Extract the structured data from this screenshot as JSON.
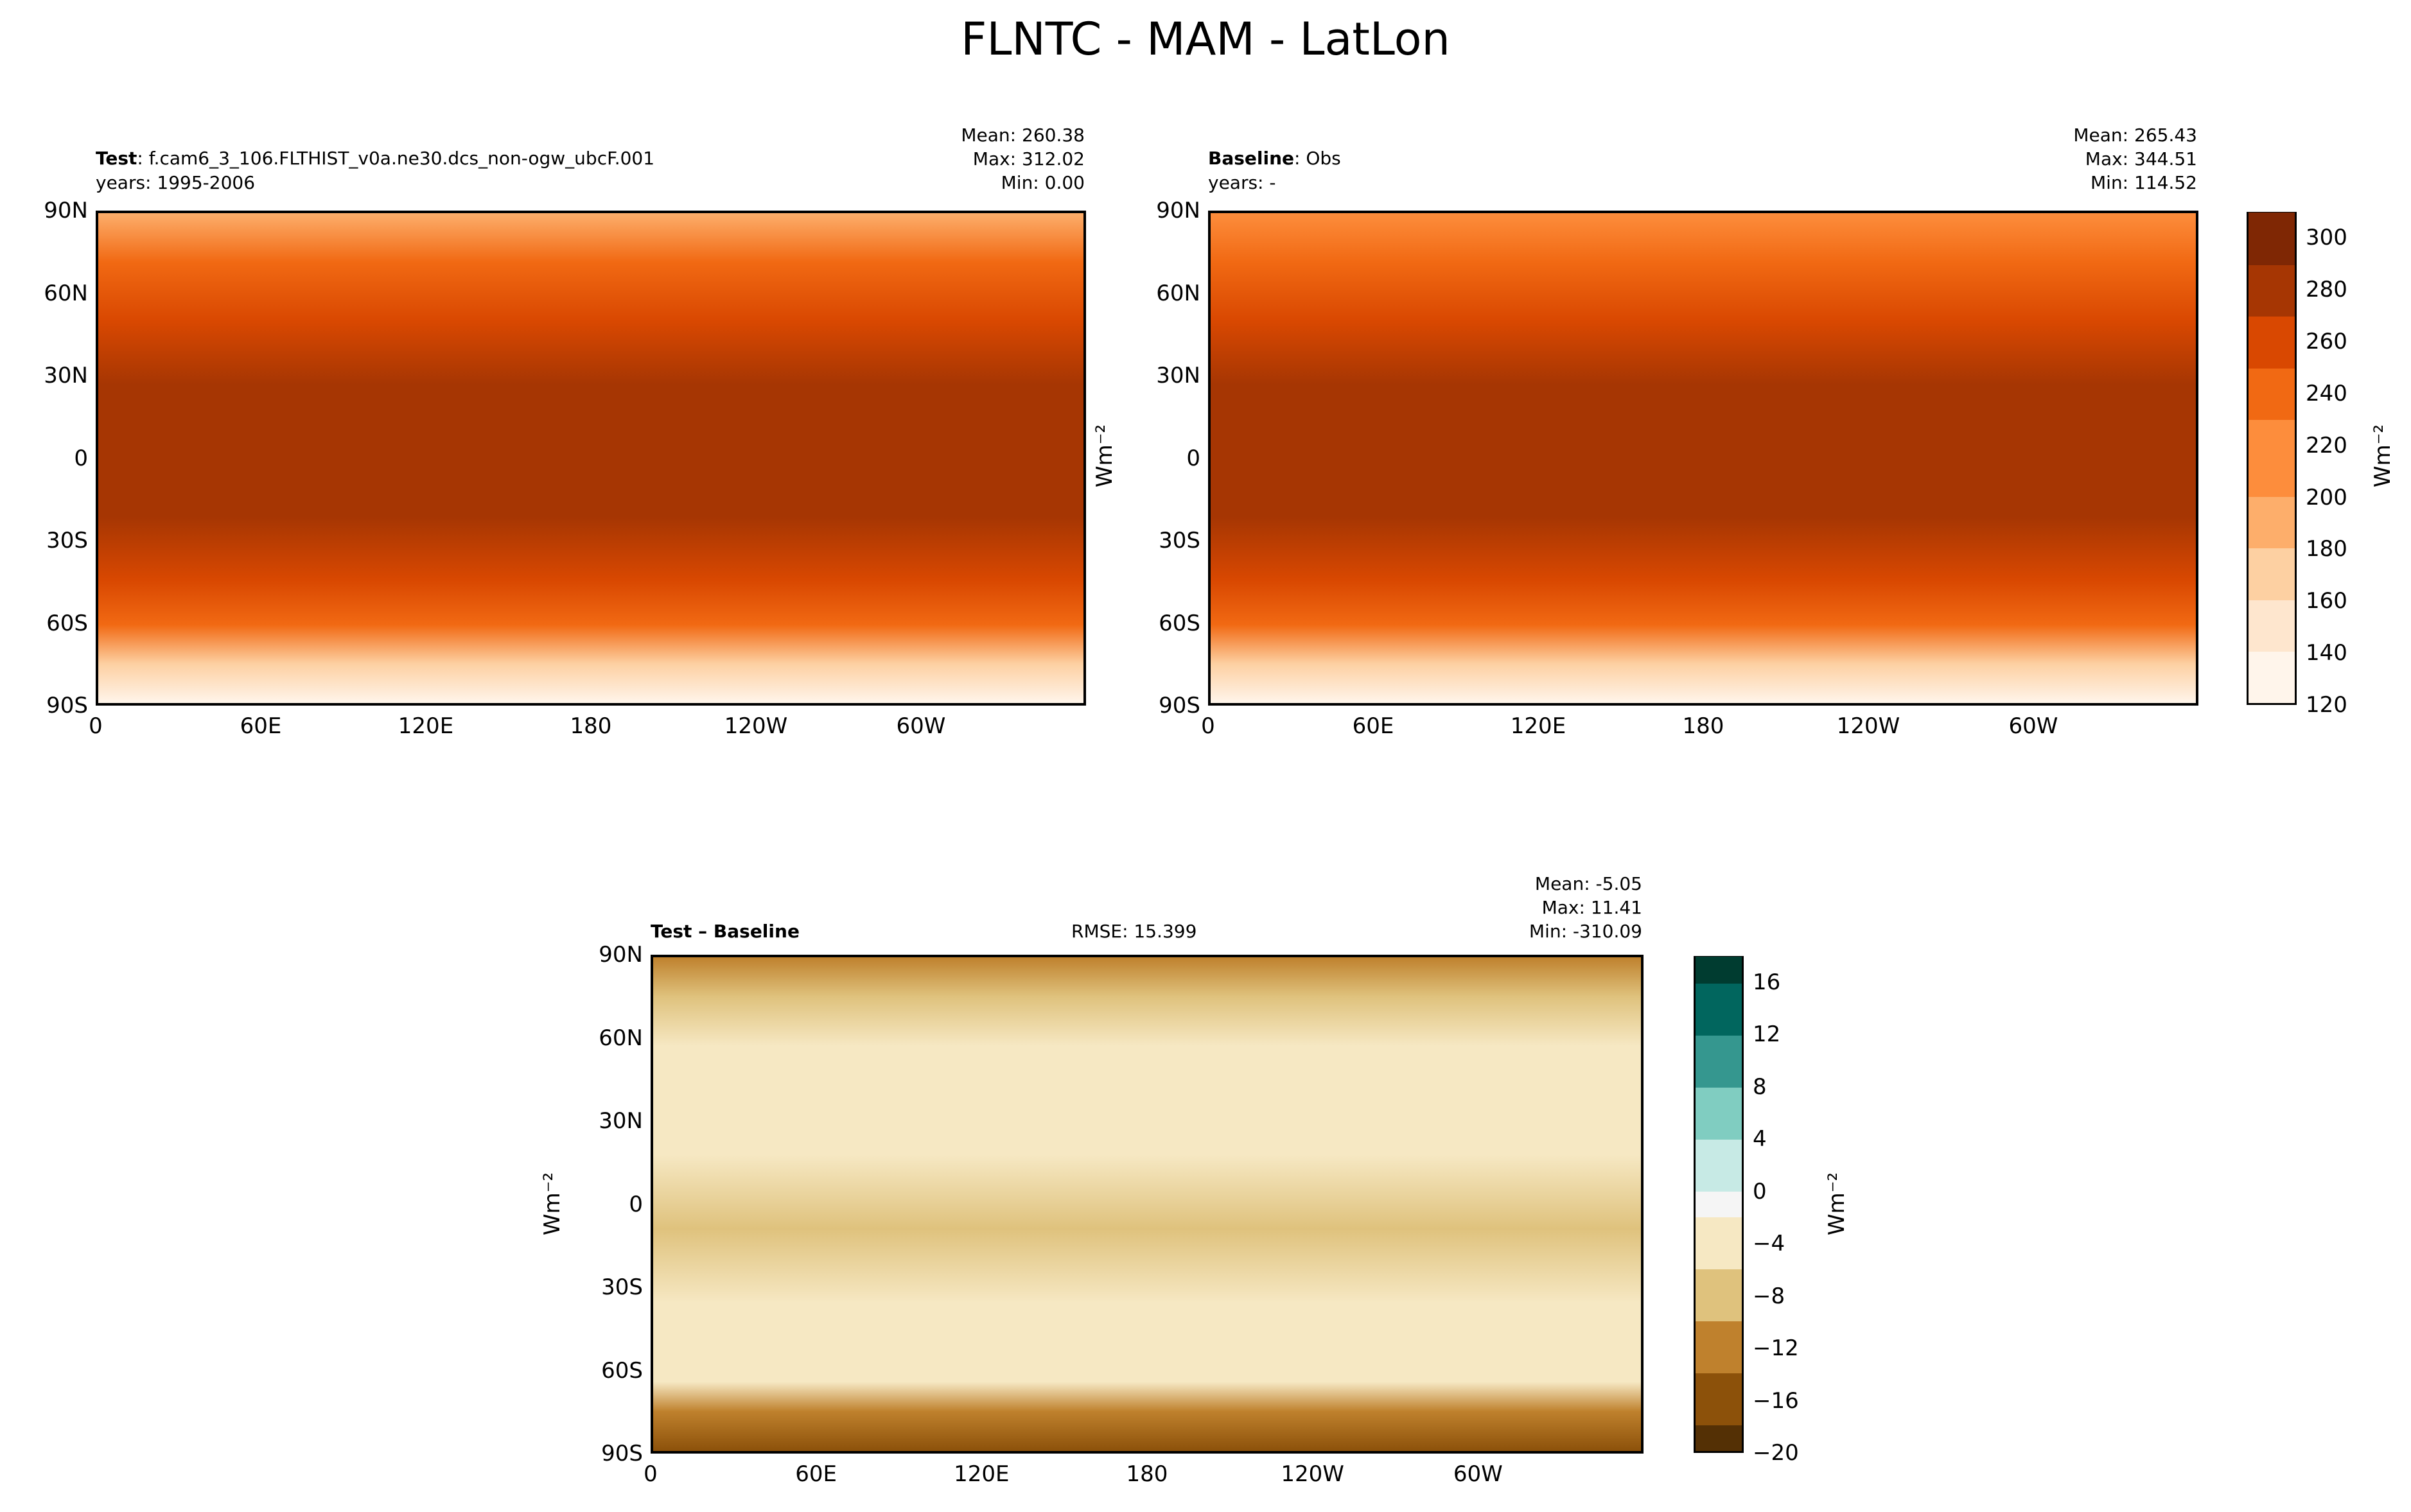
{
  "title": "FLNTC - MAM - LatLon",
  "panels": [
    {
      "label_bold": "Test",
      "label_rest": ": f.cam6_3_106.FLTHIST_v0a.ne30.dcs_non-ogw_ubcF.001",
      "years": "years: 1995-2006",
      "mean": "Mean: 260.38",
      "max": "Max: 312.02",
      "min": "Min:  0.00"
    },
    {
      "label_bold": "Baseline",
      "label_rest": ": Obs",
      "years": "years: -",
      "mean": "Mean: 265.43",
      "max": "Max: 344.51",
      "min": "Min: 114.52"
    },
    {
      "label_bold": "Test – Baseline",
      "rmse": "RMSE: 15.399",
      "mean": "Mean: -5.05",
      "max": "Max: 11.41",
      "min": "Min: -310.09"
    }
  ],
  "units": "Wm⁻²",
  "chart_data": {
    "type": "heatmap",
    "projection": "latlon",
    "x_ticks": [
      "0",
      "60E",
      "120E",
      "180",
      "120W",
      "60W"
    ],
    "y_ticks": [
      "90N",
      "60N",
      "30N",
      "0",
      "30S",
      "60S",
      "90S"
    ],
    "colorbar_main": {
      "levels_min": 120,
      "levels_max": 310,
      "step": 10,
      "ticks": [
        "300",
        "280",
        "260",
        "240",
        "220",
        "200",
        "180",
        "160",
        "140",
        "120"
      ],
      "colors": [
        "#fff5eb",
        "#fee6ce",
        "#fdd0a2",
        "#fdae6b",
        "#fd8d3c",
        "#f16913",
        "#d94801",
        "#a63603",
        "#7f2704"
      ]
    },
    "colorbar_diff": {
      "levels_min": -20,
      "levels_max": 18,
      "step": 2,
      "ticks": [
        "16",
        "12",
        "8",
        "4",
        "0",
        "−4",
        "−8",
        "−12",
        "−16",
        "−20"
      ],
      "colors": [
        "#543005",
        "#8c510a",
        "#bf812d",
        "#dfc27d",
        "#f6e8c3",
        "#f5f5f5",
        "#c7eae5",
        "#80cdc1",
        "#35978f",
        "#01665e",
        "#003c30"
      ]
    }
  }
}
